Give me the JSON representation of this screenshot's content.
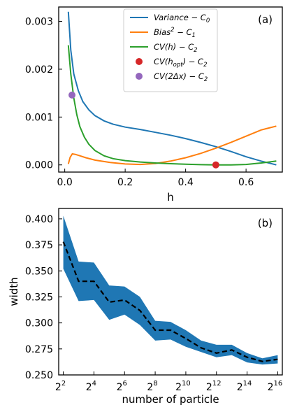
{
  "chart_data": [
    {
      "type": "line",
      "panel_label": "(a)",
      "xlabel": "h",
      "ylabel": "",
      "xlim": [
        -0.02,
        0.72
      ],
      "ylim": [
        -0.00015,
        0.0033
      ],
      "xticks": [
        0.0,
        0.2,
        0.4,
        0.6
      ],
      "xtick_labels": [
        "0.0",
        "0.2",
        "0.4",
        "0.6"
      ],
      "yticks": [
        0.0,
        0.001,
        0.002,
        0.003
      ],
      "ytick_labels": [
        "0.000",
        "0.001",
        "0.002",
        "0.003"
      ],
      "legend_position": "top-right",
      "series": [
        {
          "name": "Variance − C₀",
          "legend_main": "Variance",
          "legend_tail": " − C",
          "legend_sub": "0",
          "color": "#1f77b4",
          "x": [
            0.012,
            0.02,
            0.03,
            0.045,
            0.06,
            0.08,
            0.1,
            0.13,
            0.16,
            0.2,
            0.25,
            0.3,
            0.35,
            0.4,
            0.45,
            0.5,
            0.55,
            0.6,
            0.65,
            0.7
          ],
          "y": [
            0.0032,
            0.0024,
            0.0019,
            0.00155,
            0.00132,
            0.00115,
            0.00103,
            0.00092,
            0.00085,
            0.00079,
            0.00074,
            0.00068,
            0.00062,
            0.00055,
            0.00047,
            0.00038,
            0.00028,
            0.00017,
            8e-05,
            0.0
          ]
        },
        {
          "name": "Bias² − C₁",
          "legend_main": "Bias",
          "legend_sup": "2",
          "legend_tail": " − C",
          "legend_sub": "1",
          "color": "#ff7f0e",
          "x": [
            0.012,
            0.018,
            0.025,
            0.035,
            0.05,
            0.07,
            0.1,
            0.15,
            0.2,
            0.25,
            0.3,
            0.35,
            0.4,
            0.45,
            0.5,
            0.55,
            0.6,
            0.65,
            0.7
          ],
          "y": [
            2e-05,
            0.00016,
            0.00023,
            0.00022,
            0.00019,
            0.00015,
            0.0001,
            5e-05,
            2e-05,
            1e-05,
            3e-05,
            8e-05,
            0.00015,
            0.00024,
            0.00035,
            0.00047,
            0.0006,
            0.00073,
            0.00081
          ]
        },
        {
          "name": "CV(h) − C₂",
          "legend_main": "CV(h)",
          "legend_tail": " − C",
          "legend_sub": "2",
          "color": "#2ca02c",
          "x": [
            0.012,
            0.02,
            0.03,
            0.04,
            0.05,
            0.065,
            0.08,
            0.1,
            0.13,
            0.16,
            0.2,
            0.25,
            0.3,
            0.35,
            0.4,
            0.45,
            0.5,
            0.55,
            0.6,
            0.65,
            0.7
          ],
          "y": [
            0.0025,
            0.0019,
            0.0014,
            0.00105,
            0.0008,
            0.00058,
            0.00043,
            0.0003,
            0.00019,
            0.00013,
            9e-05,
            6e-05,
            4e-05,
            2.5e-05,
            1.5e-05,
            5e-06,
            0.0,
            0.0,
            1e-05,
            4e-05,
            8e-05
          ]
        }
      ],
      "points": [
        {
          "name": "CV(h_opt) − C₂",
          "legend_main": "CV(h",
          "legend_inner_sub": "opt",
          "legend_tail": ") − C",
          "legend_sub": "2",
          "color": "#d62728",
          "x": 0.5,
          "y": 0.0
        },
        {
          "name": "CV(2Δx) − C₂",
          "legend_main": "CV(2Δx)",
          "legend_tail": " − C",
          "legend_sub": "2",
          "color": "#9467bd",
          "x": 0.024,
          "y": 0.00146
        }
      ]
    },
    {
      "type": "area",
      "panel_label": "(b)",
      "xlabel": "number of particle",
      "ylabel": "width",
      "xscale": "log2",
      "xlim_exp": [
        1.7,
        16.3
      ],
      "ylim": [
        0.25,
        0.41
      ],
      "xtick_exps": [
        2,
        4,
        6,
        8,
        10,
        12,
        14,
        16
      ],
      "xtick_base": "2",
      "ytick_labels": [
        "0.250",
        "0.275",
        "0.300",
        "0.325",
        "0.350",
        "0.375",
        "0.400"
      ],
      "yticks": [
        0.25,
        0.275,
        0.3,
        0.325,
        0.35,
        0.375,
        0.4
      ],
      "band_color": "#1f77b4",
      "line_color": "#000000",
      "x_exp": [
        2,
        3,
        4,
        5,
        6,
        7,
        8,
        9,
        10,
        11,
        12,
        13,
        14,
        15,
        16
      ],
      "mean": [
        0.378,
        0.34,
        0.34,
        0.32,
        0.322,
        0.312,
        0.293,
        0.293,
        0.285,
        0.276,
        0.271,
        0.274,
        0.267,
        0.263,
        0.265
      ],
      "upper": [
        0.403,
        0.359,
        0.358,
        0.336,
        0.335,
        0.325,
        0.302,
        0.301,
        0.293,
        0.283,
        0.279,
        0.279,
        0.271,
        0.266,
        0.269
      ],
      "lower": [
        0.352,
        0.321,
        0.322,
        0.303,
        0.308,
        0.298,
        0.283,
        0.284,
        0.277,
        0.272,
        0.267,
        0.269,
        0.262,
        0.26,
        0.261
      ]
    }
  ]
}
